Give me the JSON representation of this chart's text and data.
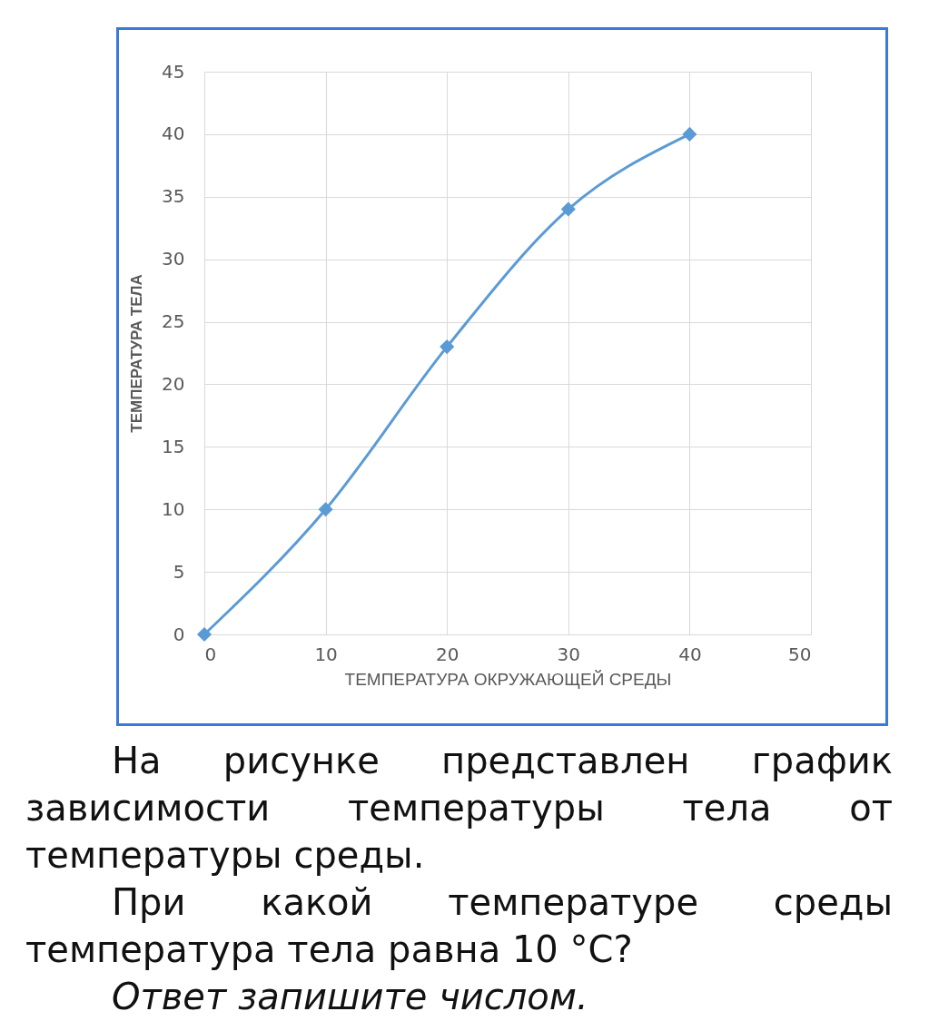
{
  "chart_data": {
    "type": "line",
    "xlabel": "ТЕМПЕРАТУРА ОКРУЖАЮЩЕЙ СРЕДЫ",
    "ylabel": "ТЕМПЕРАТУРА ТЕЛА",
    "x": [
      0,
      10,
      20,
      30,
      40
    ],
    "series": [
      {
        "color": "#5b9bd5",
        "values": [
          0,
          10,
          23,
          34,
          40
        ]
      }
    ],
    "xlim": [
      0,
      50
    ],
    "xticks": [
      0,
      10,
      20,
      30,
      40,
      50
    ],
    "ylim": [
      0,
      45
    ],
    "yticks": [
      0,
      5,
      10,
      15,
      20,
      25,
      30,
      35,
      40,
      45
    ],
    "grid": true,
    "marker": "diamond",
    "line_style": "solid",
    "annotations": [
      "На рисунке представлен график зависимости температуры тела от температуры среды.",
      "При какой температуре среды температура тела равна 10 °C?",
      "Ответ запишите числом."
    ]
  }
}
